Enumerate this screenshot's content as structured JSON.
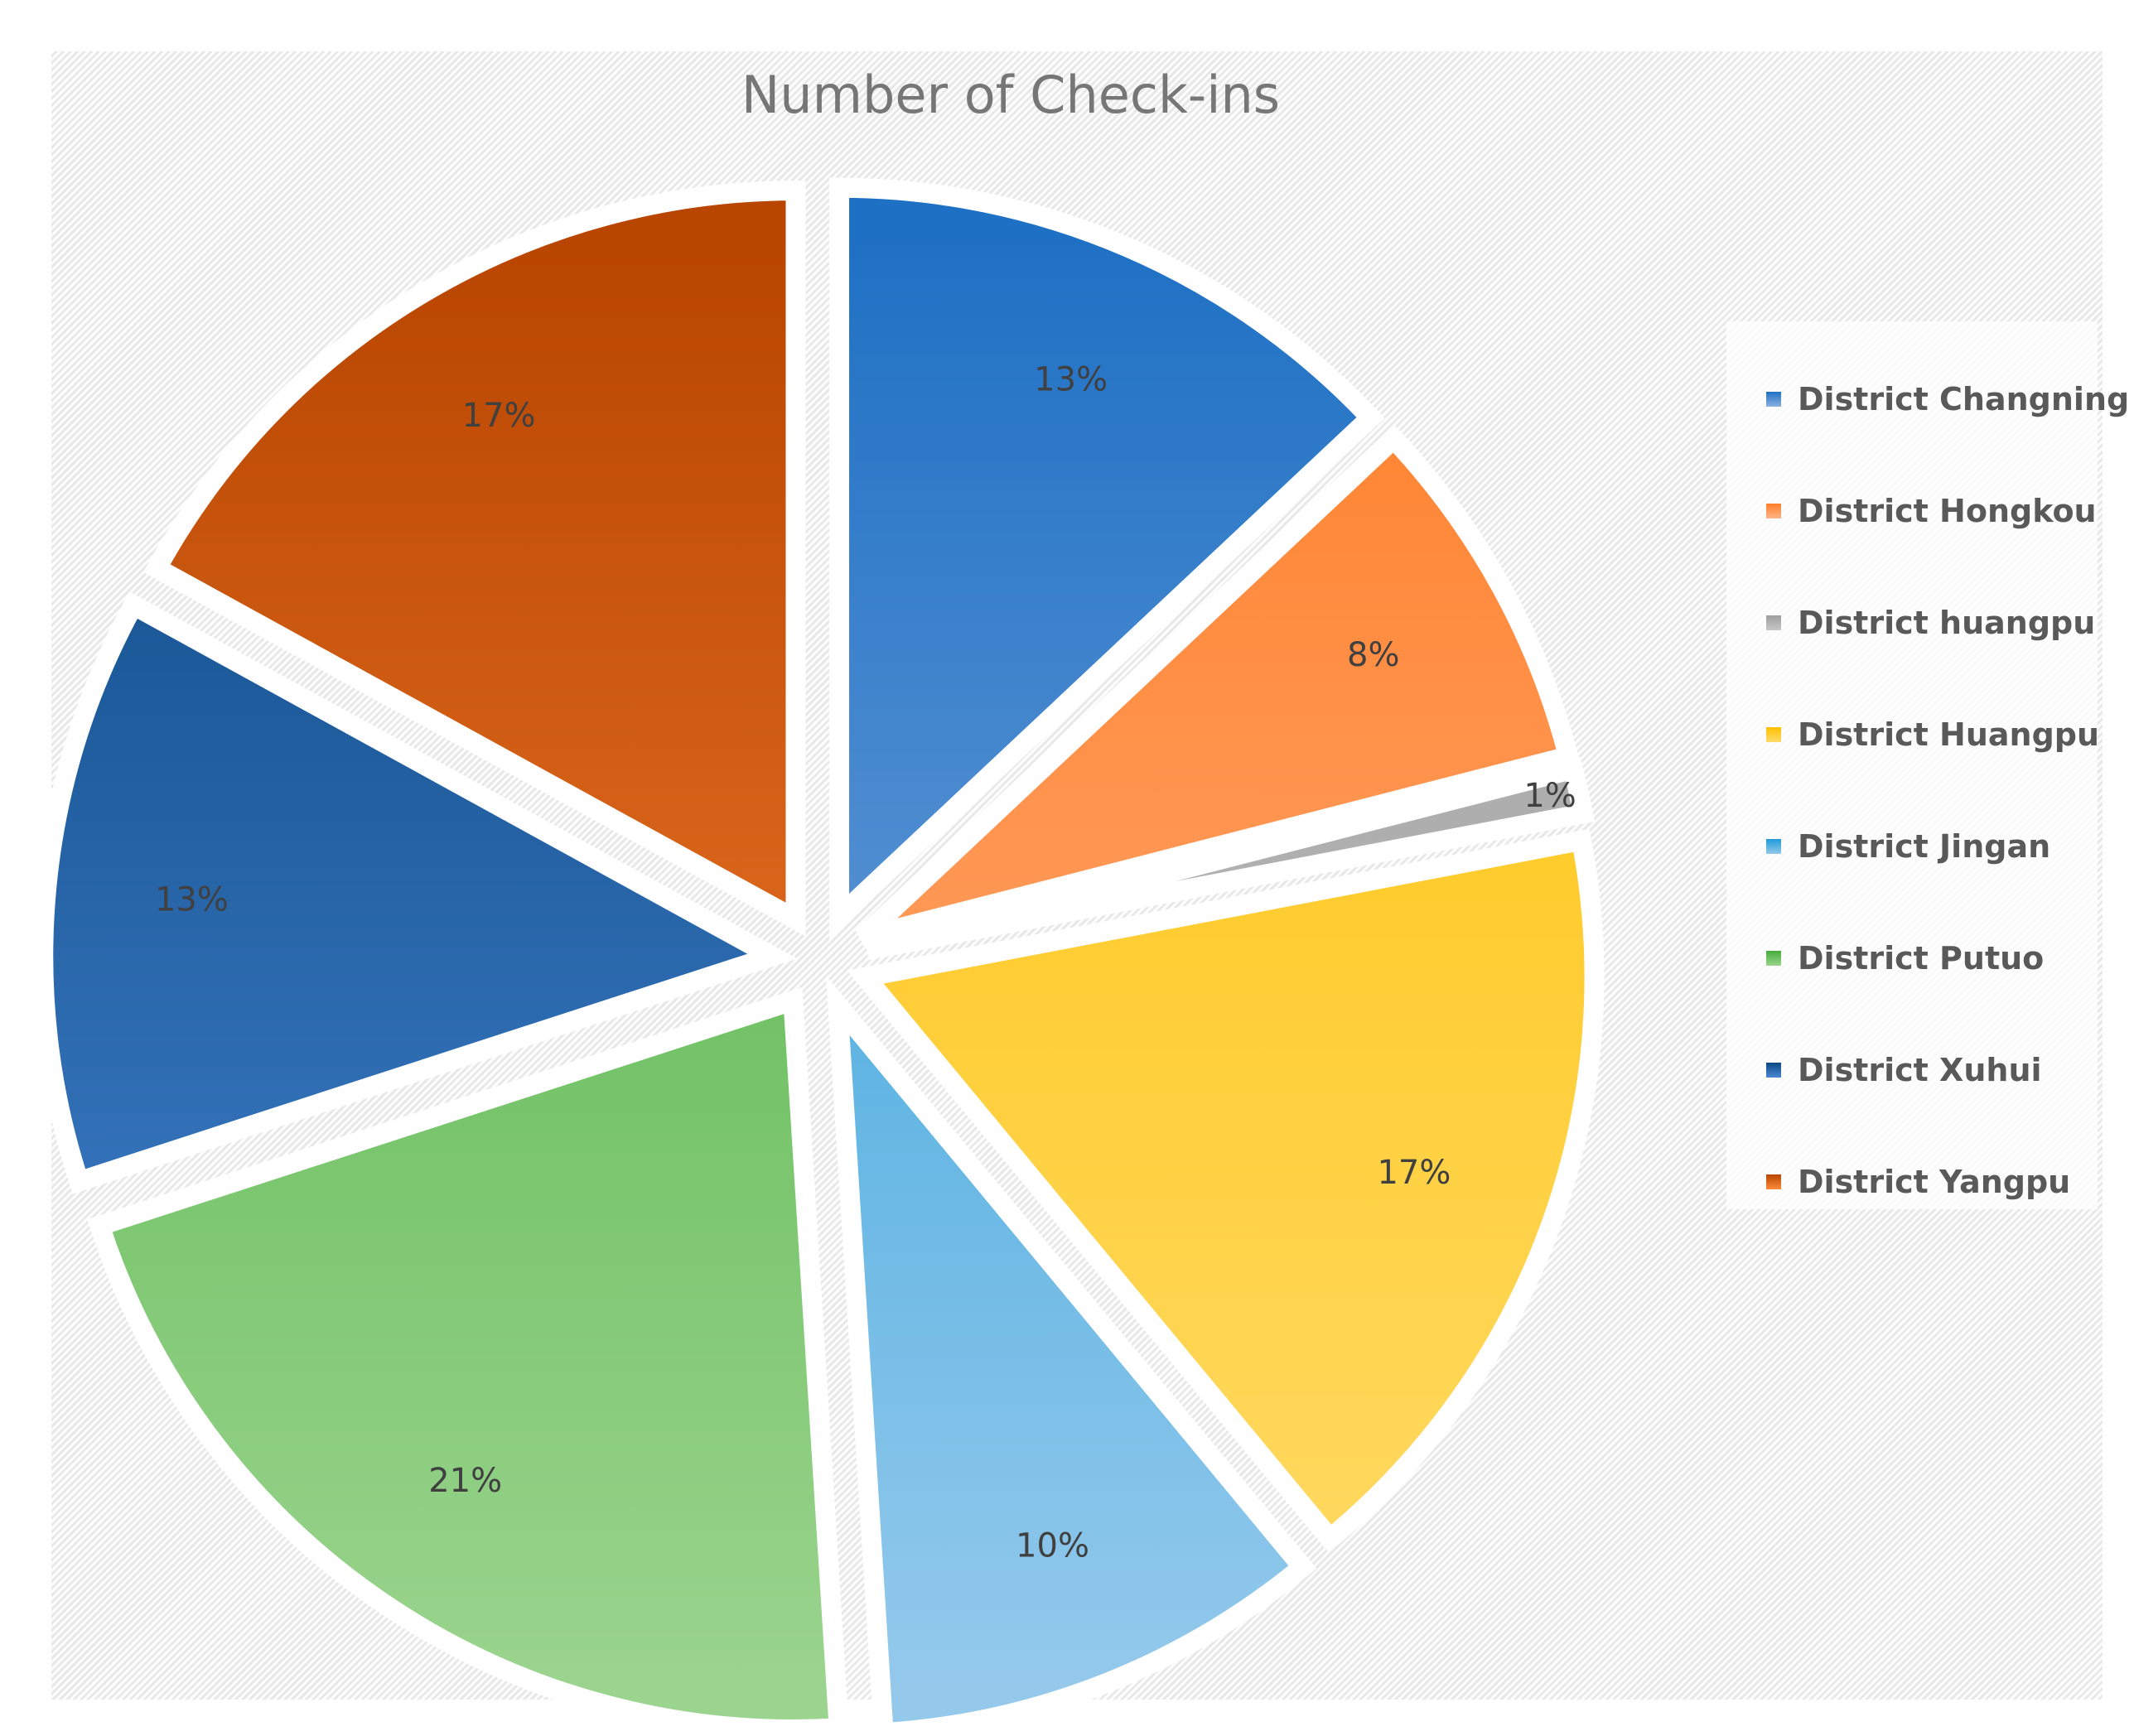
{
  "chart_data": {
    "type": "pie",
    "title": "Number of Check-ins",
    "categories": [
      "District Changning",
      "District Hongkou",
      "District huangpu",
      "District Huangpu",
      "District Jingan",
      "District Putuo",
      "District Xuhui",
      "District Yangpu"
    ],
    "values": [
      13,
      8,
      1,
      17,
      10,
      21,
      13,
      17
    ],
    "data_labels": [
      "13%",
      "8%",
      "1%",
      "17%",
      "10%",
      "21%",
      "13%",
      "17%"
    ],
    "colors": [
      [
        "#1e70c4",
        "#8cb1e0"
      ],
      [
        "#ff7f27",
        "#ffb48a"
      ],
      [
        "#9e9e9e",
        "#c6c6c6"
      ],
      [
        "#ffc000",
        "#ffdb6a"
      ],
      [
        "#1e9bd8",
        "#94c9ec"
      ],
      [
        "#43ad39",
        "#9bd48e"
      ],
      [
        "#0a4782",
        "#4a88d6"
      ],
      [
        "#b84500",
        "#ff8a3a"
      ]
    ],
    "exploded": true,
    "legend_position": "right"
  }
}
